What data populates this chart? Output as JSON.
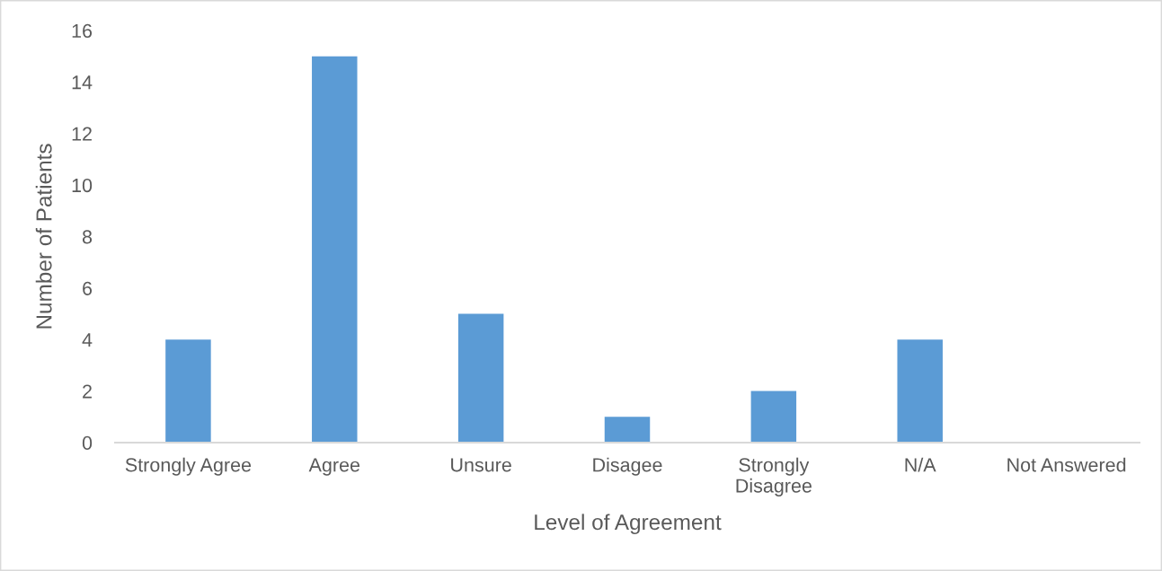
{
  "chart_data": {
    "type": "bar",
    "xlabel": "Level of Agreement",
    "ylabel": "Number of Patients",
    "categories": [
      "Strongly Agree",
      "Agree",
      "Unsure",
      "Disagee",
      "Strongly Disagree",
      "N/A",
      "Not Answered"
    ],
    "values": [
      4,
      15,
      5,
      1,
      2,
      4,
      0
    ],
    "color": "#5b9bd5",
    "ylim": [
      0,
      16
    ],
    "yticks": [
      0,
      2,
      4,
      6,
      8,
      10,
      12,
      14,
      16
    ]
  }
}
